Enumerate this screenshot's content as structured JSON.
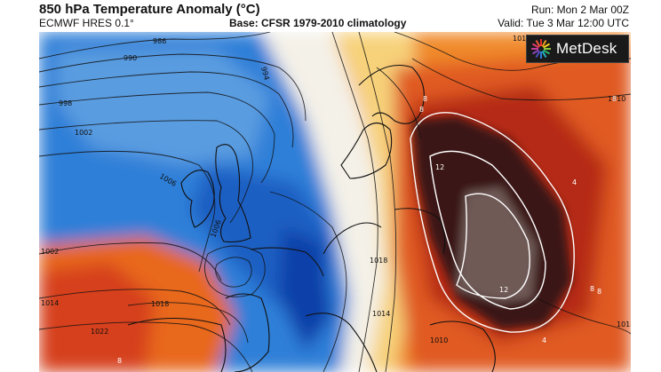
{
  "header": {
    "title": "850 hPa Temperature Anomaly (°C)",
    "model": "ECMWF HRES 0.1°",
    "base": "Base: CFSR 1979-2010 climatology",
    "run": "Run: Mon 2 Mar 00Z",
    "valid": "Valid: Tue 3 Mar 12:00 UTC"
  },
  "logo": {
    "text": "MetDesk"
  },
  "map": {
    "isobar_labels": [
      "986",
      "990",
      "994",
      "998",
      "1002",
      "1006",
      "1006",
      "1002",
      "1014",
      "1018",
      "1022",
      "1018",
      "1014",
      "1010",
      "101",
      "1010",
      "1018"
    ],
    "anomaly_labels": [
      "8",
      "8",
      "12",
      "12",
      "8",
      "8",
      "8",
      "8",
      "4",
      "4"
    ],
    "colors": {
      "cold_dark": "#0b3fa8",
      "cold_mid": "#2f7fd8",
      "cold_light": "#9cc9f0",
      "neutral": "#f4f1e8",
      "warm_light": "#f7d27a",
      "warm_mid": "#f08a2a",
      "warm_strong": "#d6401e",
      "warm_dark": "#8a1a14",
      "extreme": "#3a1812",
      "extreme_inner": "#6f5a56"
    }
  }
}
